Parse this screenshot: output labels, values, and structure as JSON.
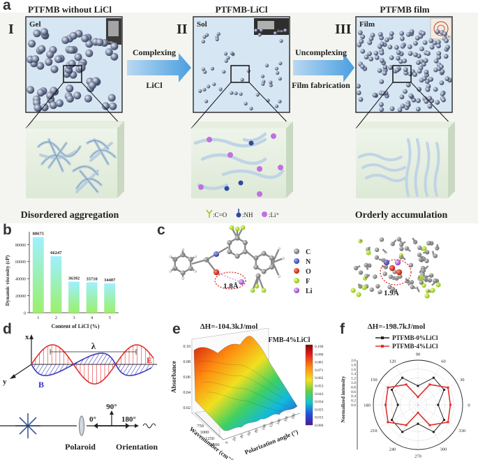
{
  "panel_a": {
    "letter": "a",
    "stage1": {
      "roman": "I",
      "title": "PTFMB without LiCl",
      "box_label": "Gel",
      "scale": "2cm",
      "caption": "Disordered aggregation"
    },
    "stage2": {
      "roman": "II",
      "title": "PTFMB-LiCl",
      "box_label": "Sol",
      "scale": "2cm"
    },
    "stage3": {
      "roman": "III",
      "title": "PTFMB film",
      "box_label": "Film",
      "scale": "2cm",
      "caption": "Orderly accumulation"
    },
    "arrow1": {
      "top": "Complexing",
      "bottom": "LiCl"
    },
    "arrow2": {
      "top": "Uncomplexing",
      "bottom": "Film fabrication"
    },
    "legend": {
      "co": ":C=O",
      "nh": ":NH",
      "li": ":Li⁺"
    }
  },
  "panel_b": {
    "letter": "b",
    "chart_data": {
      "type": "bar",
      "categories": [
        "1",
        "2",
        "3",
        "4",
        "5"
      ],
      "values": [
        88675,
        66247,
        36392,
        35710,
        34407
      ],
      "data_labels": [
        "88675",
        "66247",
        "36392",
        "35710",
        "34407"
      ],
      "xlabel": "Content of LiCl (%)",
      "ylabel": "Dynamic viscosity (cP)",
      "yticks": [
        "0",
        "20000",
        "40000",
        "60000",
        "80000"
      ],
      "ylim": [
        0,
        95000
      ]
    }
  },
  "panel_c": {
    "letter": "c",
    "legend": [
      "C",
      "N",
      "O",
      "F",
      "Li"
    ],
    "legend_colors": [
      "#8a8a8a",
      "#4a5fd0",
      "#e03020",
      "#b8e020",
      "#c070e0"
    ],
    "left": {
      "distance": "1.8Å",
      "dH": "ΔH=-104.3kJ/mol"
    },
    "right": {
      "distance": "1.9Å",
      "dH": "ΔH=-198.7kJ/mol"
    }
  },
  "panel_d": {
    "letter": "d",
    "x_label": "x",
    "y_label": "y",
    "b_label": "B",
    "e_label": "E",
    "lambda": "λ",
    "angle90": "90°",
    "angle0": "0°",
    "angle180": "180°",
    "polaroid": "Polaroid",
    "orientation": "Orientation"
  },
  "panel_e": {
    "letter": "e",
    "title": "PTFMB-4%LiCl",
    "zlabel": "Absorbance",
    "xlabel": "Wavenumber (cm⁻¹)",
    "ylabel": "Polarization angle (°)",
    "zticks": [
      "0.02",
      "0.04",
      "0.06",
      "0.08",
      "0.10"
    ],
    "xticks": [
      "750",
      "1000",
      "1250",
      "1500"
    ],
    "yticks": [
      "0",
      "20",
      "40",
      "60",
      "80",
      "100",
      "120",
      "140",
      "160",
      "180"
    ],
    "colorbar": [
      "0.100",
      "0.090",
      "0.081",
      "0.071",
      "0.062",
      "0.053",
      "0.043",
      "0.034",
      "0.025",
      "0.015",
      "0.006"
    ]
  },
  "panel_f": {
    "letter": "f",
    "chart_data": {
      "type": "polar",
      "series": [
        {
          "name": "PTFMB-0%LiCl",
          "color": "#222222",
          "angles": [
            0,
            30,
            60,
            90,
            120,
            150,
            180,
            210,
            240,
            270,
            300,
            330
          ],
          "values": [
            0.9,
            1.35,
            1.4,
            0.85,
            1.4,
            1.35,
            0.9,
            1.35,
            1.4,
            0.85,
            1.4,
            1.35
          ]
        },
        {
          "name": "PTFMB-4%LiCl",
          "color": "#e03030",
          "angles": [
            0,
            30,
            60,
            90,
            120,
            150,
            180,
            210,
            240,
            270,
            300,
            330
          ],
          "values": [
            1.45,
            1.55,
            1.05,
            0.35,
            1.05,
            1.55,
            1.45,
            1.55,
            1.05,
            0.35,
            1.05,
            1.55
          ]
        }
      ],
      "rlabel": "Normalized intensity",
      "rticks": [
        "0.0",
        "0.2",
        "0.4",
        "0.6",
        "0.8",
        "1.0",
        "1.2",
        "1.4",
        "1.6",
        "1.8",
        "2.0"
      ],
      "angle_labels": [
        "0",
        "30",
        "60",
        "90",
        "120",
        "150",
        "180",
        "210",
        "240",
        "270",
        "300",
        "330"
      ],
      "rmax": 2.0
    }
  }
}
